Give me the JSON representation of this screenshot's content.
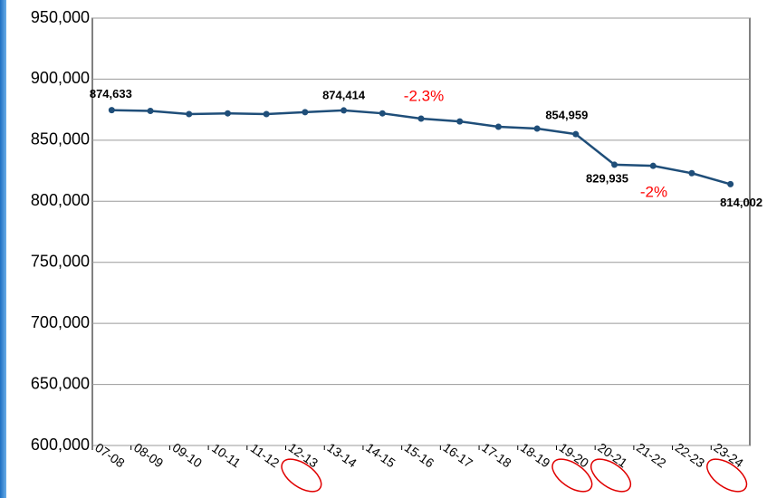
{
  "chart_data": {
    "type": "line",
    "categories": [
      "07-08",
      "08-09",
      "09-10",
      "10-11",
      "11-12",
      "12-13",
      "13-14",
      "14-15",
      "15-16",
      "16-17",
      "17-18",
      "18-19",
      "19-20",
      "20-21",
      "21-22",
      "22-23",
      "23-24"
    ],
    "series": [
      {
        "color": "#1f4e79",
        "values": [
          874633,
          874000,
          871400,
          872000,
          871400,
          873000,
          874414,
          872000,
          867700,
          865400,
          861000,
          859500,
          854959,
          829935,
          829000,
          823000,
          814002
        ],
        "value_labels": [
          "874,633",
          null,
          null,
          null,
          null,
          null,
          "874,414",
          null,
          null,
          null,
          null,
          null,
          "854,959",
          "829,935",
          null,
          null,
          "814,002"
        ]
      }
    ],
    "ylim": [
      600000,
      950000
    ],
    "yticks": [
      {
        "value": 600000,
        "label": "600,000"
      },
      {
        "value": 650000,
        "label": "650,000"
      },
      {
        "value": 700000,
        "label": "700,000"
      },
      {
        "value": 750000,
        "label": "750,000"
      },
      {
        "value": 800000,
        "label": "800,000"
      },
      {
        "value": 850000,
        "label": "850,000"
      },
      {
        "value": 900000,
        "label": "900,000"
      },
      {
        "value": 950000,
        "label": "950,000"
      }
    ],
    "grid": true,
    "annotations": [
      "-2.3%",
      "-2%"
    ],
    "annotation_color": "#ff0000",
    "highlight": [
      5,
      12,
      13,
      16
    ],
    "highlight_color": "#e00000"
  }
}
